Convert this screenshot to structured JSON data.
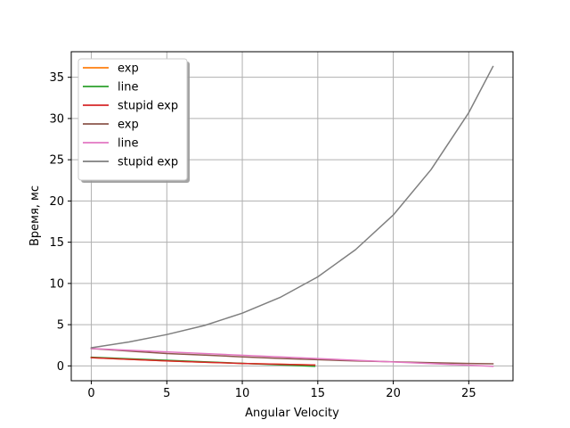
{
  "chart_data": {
    "type": "line",
    "title": "",
    "xlabel": "Angular Velocity",
    "ylabel": "Время, мс",
    "xlim": [
      -1.33,
      27.93
    ],
    "ylim": [
      -1.8,
      38.1
    ],
    "xticks": [
      0,
      5,
      10,
      15,
      20,
      25
    ],
    "yticks": [
      0,
      5,
      10,
      15,
      20,
      25,
      30,
      35
    ],
    "grid": true,
    "legend_position": "top-left",
    "series": [
      {
        "name": "exp",
        "color": "#ff7f0e",
        "x": [
          0,
          2.5,
          5,
          7.5,
          10,
          12.5,
          14.8
        ],
        "y": [
          1.0,
          0.8,
          0.6,
          0.45,
          0.3,
          0.2,
          0.1
        ]
      },
      {
        "name": "line",
        "color": "#2ca02c",
        "x": [
          0,
          14.8
        ],
        "y": [
          1.05,
          -0.05
        ]
      },
      {
        "name": "stupid exp",
        "color": "#d62728",
        "x": [
          0,
          2.5,
          5,
          7.5,
          10,
          12.5,
          14.8
        ],
        "y": [
          1.0,
          0.8,
          0.6,
          0.45,
          0.3,
          0.2,
          0.1
        ]
      },
      {
        "name": "exp",
        "color": "#8c564b",
        "x": [
          0,
          2.5,
          5,
          7.5,
          10,
          12.5,
          15,
          17.5,
          20,
          22.5,
          25,
          26.6
        ],
        "y": [
          2.1,
          1.8,
          1.5,
          1.3,
          1.1,
          0.9,
          0.75,
          0.6,
          0.5,
          0.4,
          0.3,
          0.25
        ]
      },
      {
        "name": "line",
        "color": "#e377c2",
        "x": [
          0,
          26.6
        ],
        "y": [
          2.1,
          -0.05
        ]
      },
      {
        "name": "stupid exp",
        "color": "#7f7f7f",
        "x": [
          0,
          2.5,
          5,
          7.5,
          10,
          12.5,
          15,
          17.5,
          20,
          22.5,
          25,
          26.6
        ],
        "y": [
          2.2,
          2.9,
          3.8,
          4.9,
          6.4,
          8.3,
          10.8,
          14.1,
          18.3,
          23.8,
          30.7,
          36.3
        ]
      }
    ]
  }
}
